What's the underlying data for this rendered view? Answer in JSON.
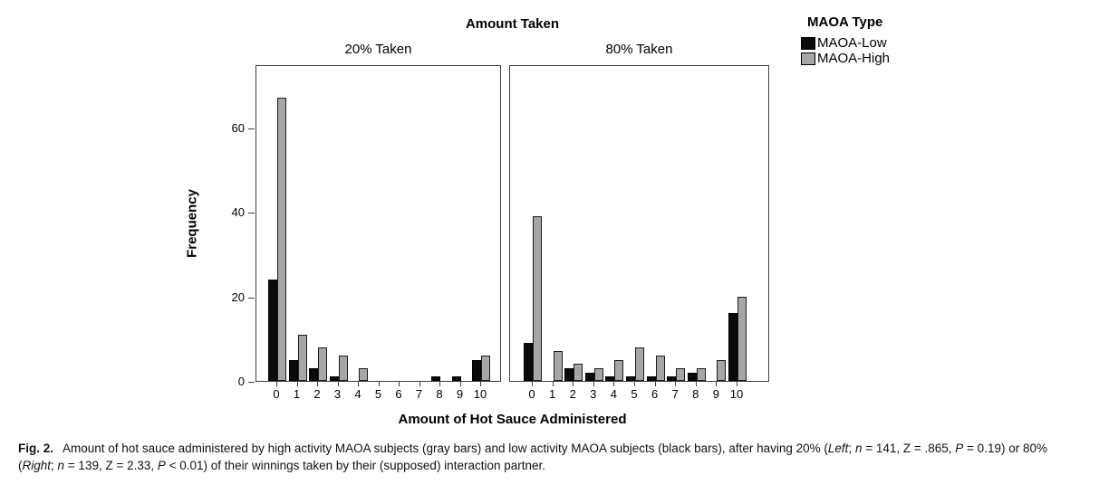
{
  "figure": {
    "title": "Amount Taken",
    "xlabel": "Amount of Hot Sauce Administered",
    "ylabel": "Frequency",
    "legend": {
      "title": "MAOA Type",
      "items": [
        {
          "label": "MAOA-Low",
          "color": "#0a0a0a"
        },
        {
          "label": "MAOA-High",
          "color": "#a6a6a6"
        }
      ]
    }
  },
  "chart_data": {
    "type": "bar",
    "title": "Amount Taken",
    "xlabel": "Amount of Hot Sauce Administered",
    "ylabel": "Frequency",
    "ylim": [
      0,
      75
    ],
    "yticks": [
      "0",
      "20",
      "40",
      "60"
    ],
    "grid": false,
    "legend_position": "top-right",
    "categories": [
      "0",
      "1",
      "2",
      "3",
      "4",
      "5",
      "6",
      "7",
      "8",
      "9",
      "10"
    ],
    "colors": {
      "MAOA-Low": "#0a0a0a",
      "MAOA-High": "#a6a6a6"
    },
    "panels": [
      {
        "label": "20% Taken",
        "series": [
          {
            "name": "MAOA-Low",
            "values": [
              24,
              5,
              3,
              1,
              0,
              0,
              0,
              0,
              1,
              1,
              5
            ]
          },
          {
            "name": "MAOA-High",
            "values": [
              67,
              11,
              8,
              6,
              3,
              0,
              0,
              0,
              0,
              0,
              6
            ]
          }
        ]
      },
      {
        "label": "80% Taken",
        "series": [
          {
            "name": "MAOA-Low",
            "values": [
              9,
              0,
              3,
              2,
              1,
              1,
              1,
              1,
              2,
              0,
              16
            ]
          },
          {
            "name": "MAOA-High",
            "values": [
              39,
              7,
              4,
              3,
              5,
              8,
              6,
              3,
              3,
              5,
              20
            ]
          }
        ]
      }
    ]
  },
  "caption": {
    "segments": [
      {
        "text": "Fig. 2.",
        "bold": true
      },
      {
        "text": "Amount of hot sauce administered by high activity MAOA subjects (gray bars) and low activity MAOA subjects (black bars), after having 20% ("
      },
      {
        "text": "Left",
        "italic": true
      },
      {
        "text": "; "
      },
      {
        "text": "n",
        "italic": true
      },
      {
        "text": " = 141, Z = .865, "
      },
      {
        "text": "P",
        "italic": true
      },
      {
        "text": " = 0.19) or 80% ("
      },
      {
        "text": "Right",
        "italic": true
      },
      {
        "text": "; "
      },
      {
        "text": "n",
        "italic": true
      },
      {
        "text": " = 139, Z = 2.33, "
      },
      {
        "text": "P",
        "italic": true
      },
      {
        "text": " < 0.01) of their winnings taken by their (supposed) interaction partner."
      }
    ]
  }
}
